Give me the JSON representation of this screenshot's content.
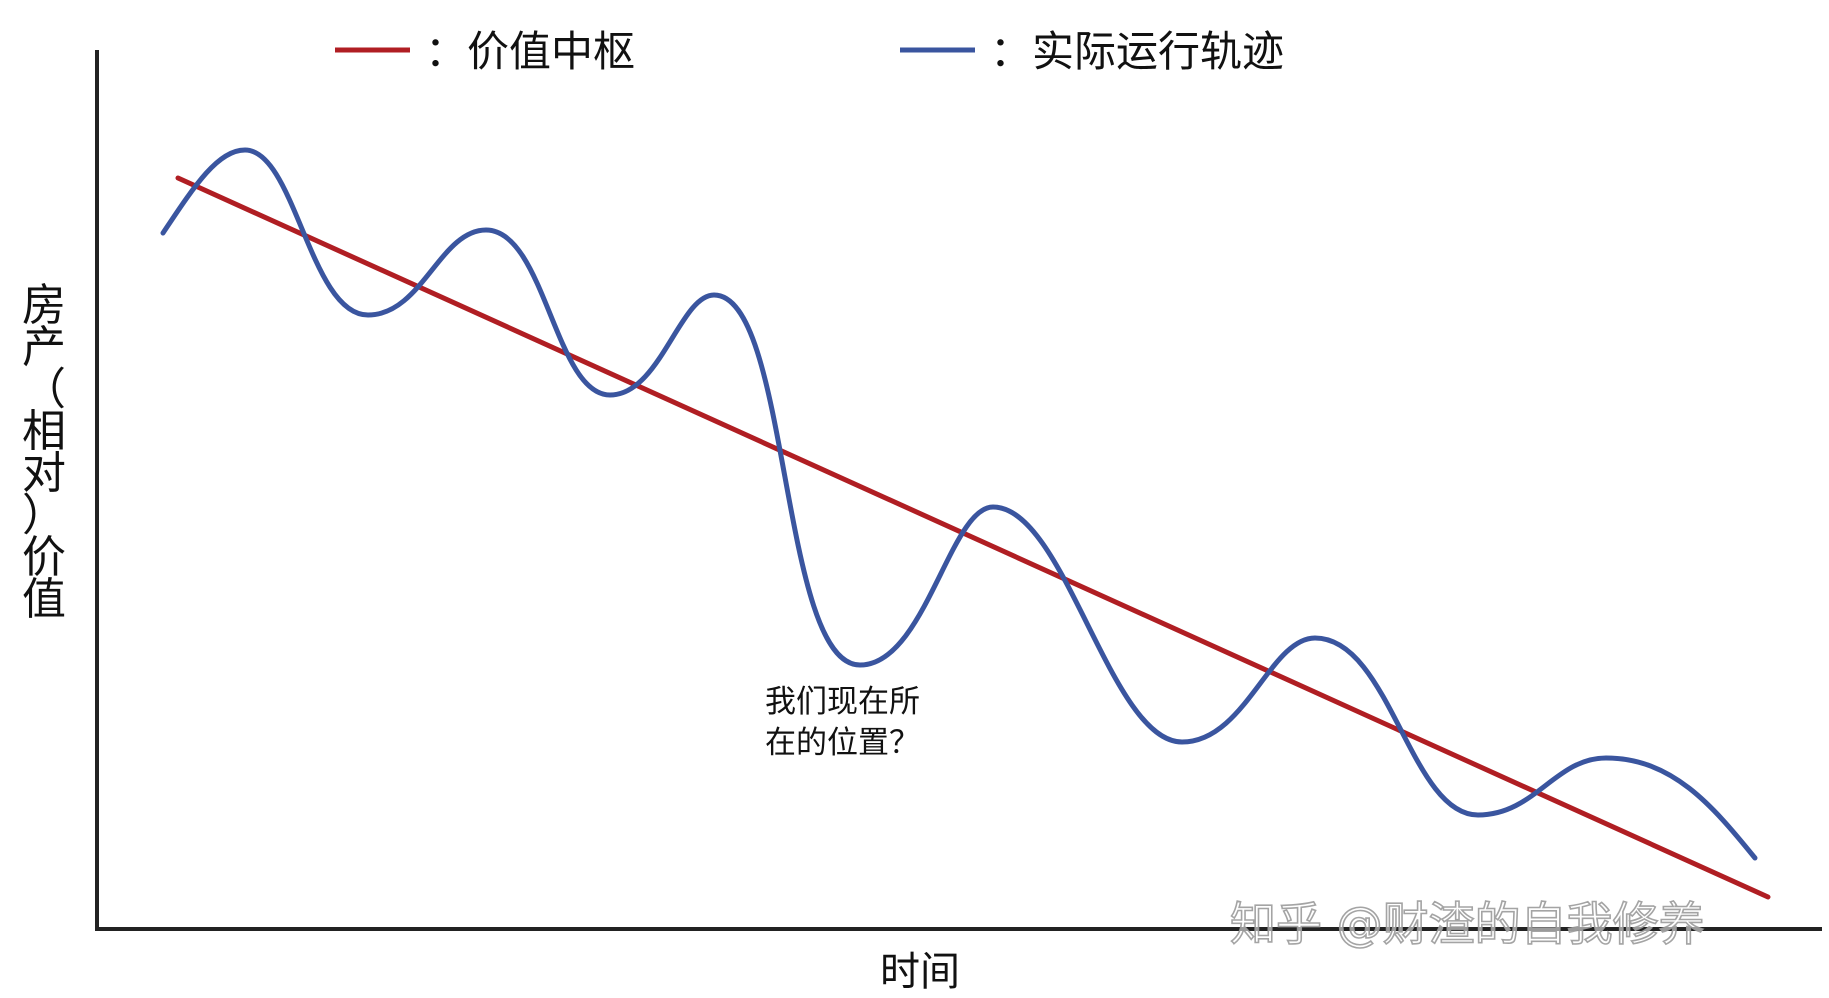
{
  "chart_data": {
    "type": "line",
    "title": "",
    "xlabel": "时间",
    "ylabel": "房产（相对）价值",
    "grid": false,
    "legend_position": "top",
    "legend": [
      {
        "series": "center",
        "label": "：价值中枢",
        "color": "#b01e23"
      },
      {
        "series": "actual",
        "label": "：实际运行轨迹",
        "color": "#3a559f"
      }
    ],
    "annotation": {
      "lines": [
        "我们现在所",
        "在的位置？"
      ]
    },
    "watermark": "知乎 @财渣的自我修养"
  }
}
